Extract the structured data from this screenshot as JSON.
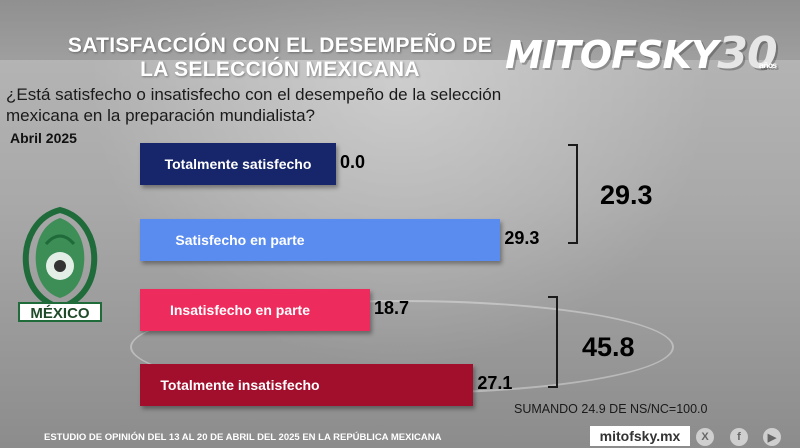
{
  "header": {
    "title_line1": "SATISFACCIÓN CON EL DESEMPEÑO DE",
    "title_line2": "LA SELECCIÓN MEXICANA",
    "brand": "MITOFSKY",
    "brand_anniversary": "30",
    "brand_anniversary_suffix": "años"
  },
  "question": "¿Está satisfecho o insatisfecho con el desempeño de la selección mexicana en la preparación mundialista?",
  "period": "Abril 2025",
  "logo": {
    "text": "MÉXICO",
    "icon": "mexico-national-team-crest-icon"
  },
  "chart_data": {
    "type": "bar",
    "orientation": "horizontal",
    "categories": [
      "Totalmente satisfecho",
      "Satisfecho en parte",
      "Insatisfecho en parte",
      "Totalmente insatisfecho"
    ],
    "values": [
      0.0,
      29.3,
      18.7,
      27.1
    ],
    "value_labels": [
      "0.0",
      "29.3",
      "18.7",
      "27.1"
    ],
    "colors": [
      "#17266b",
      "#5a8cf0",
      "#ee2b5d",
      "#a10f2c"
    ],
    "groups": [
      {
        "label": "29.3",
        "members": [
          0,
          1
        ]
      },
      {
        "label": "45.8",
        "members": [
          2,
          3
        ]
      }
    ],
    "note": "SUMANDO 24.9 DE NS/NC=100.0",
    "grid": false
  },
  "footer": {
    "study": "ESTUDIO DE OPINIÓN DEL 13 AL 20 DE ABRIL DEL 2025 EN LA REPÚBLICA MEXICANA",
    "site": "mitofsky.mx",
    "social_icons": [
      "x-icon",
      "facebook-icon",
      "youtube-icon"
    ]
  }
}
